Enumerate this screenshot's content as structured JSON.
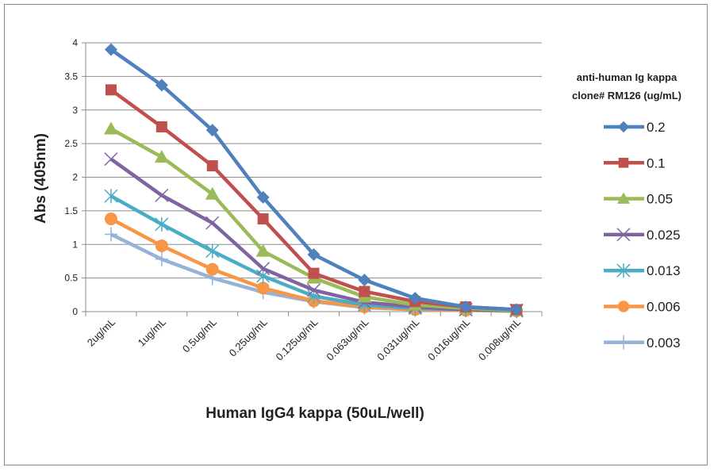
{
  "chart_data": {
    "type": "line",
    "title": "",
    "xlabel": "Human IgG4 kappa (50uL/well)",
    "ylabel": "Abs (405nm)",
    "ylim": [
      0,
      4
    ],
    "yticks": [
      "0",
      "0.5",
      "1",
      "1.5",
      "2",
      "2.5",
      "3",
      "3.5",
      "4"
    ],
    "grid": true,
    "legend_position": "right",
    "legend_title": [
      "anti-human Ig kappa",
      "clone# RM126 (ug/mL)"
    ],
    "categories": [
      "2ug/mL",
      "1ug/mL",
      "0.5ug/mL",
      "0.25ug/mL",
      "0.125ug/mL",
      "0.063ug/mL",
      "0.031ug/mL",
      "0.016ug/mL",
      "0.008ug/mL"
    ],
    "series": [
      {
        "name": "0.2",
        "color": "#4F81BD",
        "marker": "diamond",
        "values": [
          3.9,
          3.37,
          2.7,
          1.7,
          0.85,
          0.47,
          0.2,
          0.07,
          0.03
        ]
      },
      {
        "name": "0.1",
        "color": "#C0504D",
        "marker": "square",
        "values": [
          3.3,
          2.75,
          2.17,
          1.38,
          0.57,
          0.3,
          0.15,
          0.07,
          0.03
        ]
      },
      {
        "name": "0.05",
        "color": "#9BBB59",
        "marker": "triangle",
        "values": [
          2.72,
          2.3,
          1.75,
          0.9,
          0.5,
          0.22,
          0.1,
          0.05,
          0.02
        ]
      },
      {
        "name": "0.025",
        "color": "#8064A2",
        "marker": "x",
        "values": [
          2.27,
          1.73,
          1.32,
          0.64,
          0.32,
          0.14,
          0.07,
          0.03,
          0.02
        ]
      },
      {
        "name": "0.013",
        "color": "#4BACC6",
        "marker": "star",
        "values": [
          1.72,
          1.3,
          0.9,
          0.53,
          0.23,
          0.1,
          0.05,
          0.03,
          0.01
        ]
      },
      {
        "name": "0.006",
        "color": "#F79646",
        "marker": "circle",
        "values": [
          1.38,
          0.98,
          0.63,
          0.35,
          0.16,
          0.07,
          0.03,
          0.02,
          0.01
        ]
      },
      {
        "name": "0.003",
        "color": "#95B3D7",
        "marker": "plus",
        "values": [
          1.15,
          0.78,
          0.5,
          0.29,
          0.15,
          0.06,
          0.03,
          0.02,
          0.01
        ]
      }
    ]
  }
}
